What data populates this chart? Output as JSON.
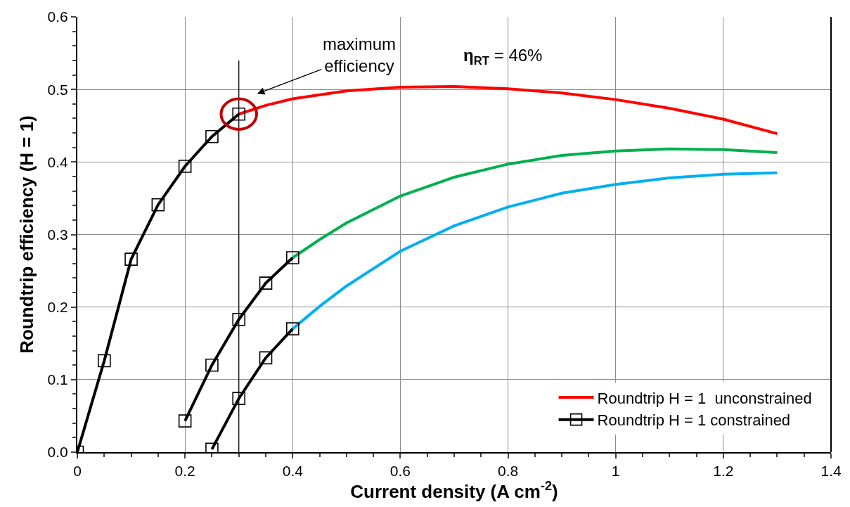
{
  "chart_data": {
    "type": "line",
    "xlabel": "Current density (A cm$^{-2}$)",
    "ylabel": "Roundtrip efficiency (H = 1)",
    "xlim": [
      0,
      1.4
    ],
    "xticks": [
      0,
      0.2,
      0.4,
      0.6,
      0.8,
      1,
      1.2,
      1.4
    ],
    "ylim": [
      0,
      0.6
    ],
    "yticks": [
      {
        "value": 0,
        "label": "0.0"
      },
      0.1,
      0.2,
      0.3,
      0.4,
      0.5,
      0.6
    ],
    "grid": true,
    "legend": "bottom right",
    "series": [
      {
        "name": "Roundtrip H = 1  unconstrained",
        "color": "#ff0000",
        "x": [
          0.3,
          0.35,
          0.4,
          0.5,
          0.6,
          0.7,
          0.8,
          0.9,
          1.0,
          1.1,
          1.2,
          1.3
        ],
        "values": [
          0.466,
          0.478,
          0.487,
          0.498,
          0.503,
          0.504,
          0.501,
          0.495,
          0.486,
          0.474,
          0.459,
          0.439
        ]
      },
      {
        "color": "#00b050",
        "x": [
          0.4,
          0.45,
          0.5,
          0.6,
          0.7,
          0.8,
          0.9,
          1.0,
          1.1,
          1.2,
          1.3
        ],
        "values": [
          0.268,
          0.293,
          0.316,
          0.353,
          0.379,
          0.397,
          0.409,
          0.415,
          0.418,
          0.417,
          0.413
        ]
      },
      {
        "color": "#00b0f0",
        "x": [
          0.4,
          0.45,
          0.5,
          0.6,
          0.7,
          0.8,
          0.9,
          1.0,
          1.1,
          1.2,
          1.3
        ],
        "values": [
          0.17,
          0.201,
          0.229,
          0.277,
          0.312,
          0.338,
          0.357,
          0.369,
          0.378,
          0.383,
          0.385
        ]
      },
      {
        "name": "Roundtrip H = 1 constrained",
        "color": "#000000",
        "marker": "square",
        "x": [
          0,
          0.05,
          0.1,
          0.15,
          0.2,
          0.25,
          0.3
        ],
        "values": [
          0,
          0.126,
          0.266,
          0.341,
          0.394,
          0.435,
          0.466
        ]
      },
      {
        "color": "#000000",
        "marker": "square",
        "x": [
          0.2,
          0.25,
          0.3,
          0.35,
          0.4
        ],
        "values": [
          0.043,
          0.12,
          0.183,
          0.233,
          0.268
        ]
      },
      {
        "color": "#000000",
        "marker": "square",
        "x": [
          0.25,
          0.3,
          0.35,
          0.4
        ],
        "values": [
          0.004,
          0.074,
          0.13,
          0.17
        ]
      }
    ],
    "ref_lines": [
      {
        "axis": "x",
        "value": 0.3,
        "color": "#000000"
      }
    ],
    "annotations": [
      "maximum\nefficiency",
      "η$_{RT}$ = 46%"
    ]
  }
}
